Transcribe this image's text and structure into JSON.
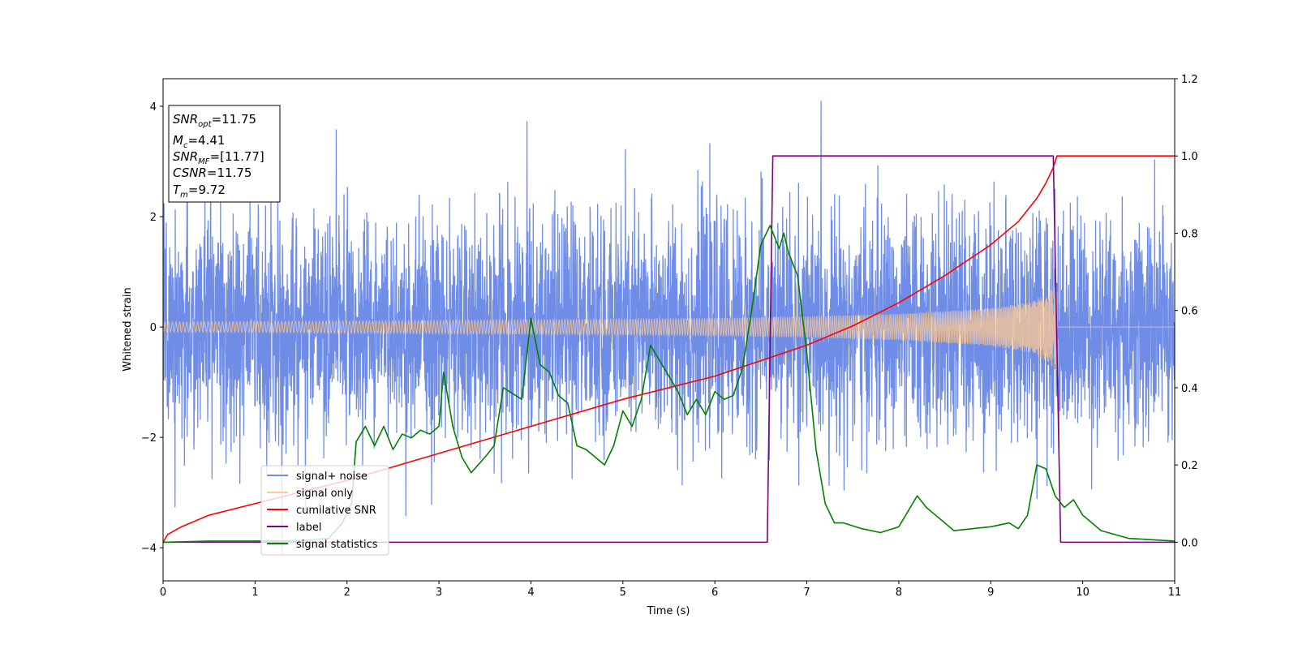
{
  "chart_data": {
    "type": "line",
    "xlabel": "Time (s)",
    "ylabel": "Whitened strain",
    "xlim": [
      0,
      11
    ],
    "ylim_left": [
      -4.6,
      4.5
    ],
    "ylim_right": [
      -0.1,
      1.2
    ],
    "xticks": [
      "0",
      "1",
      "2",
      "3",
      "4",
      "5",
      "6",
      "7",
      "8",
      "9",
      "10",
      "11"
    ],
    "yticks_left": [
      "−4",
      "−2",
      "0",
      "2",
      "4"
    ],
    "yticks_right": [
      "0.0",
      "0.2",
      "0.4",
      "0.6",
      "0.8",
      "1.0",
      "1.2"
    ],
    "grid": false,
    "legend_position": "lower-left",
    "info_box": {
      "snr_opt": "=11.75",
      "mc": "=4.41",
      "snr_mf": "=[11.77]",
      "csnr": "=11.75",
      "tm": "=9.72"
    },
    "legend": [
      {
        "label": "signal+ noise",
        "color": "#6f8de6"
      },
      {
        "label": "signal only",
        "color": "#ffc991"
      },
      {
        "label": "cumilative SNR",
        "color": "#ff0000"
      },
      {
        "label": "label",
        "color": "#800080"
      },
      {
        "label": "signal statistics",
        "color": "#008000"
      }
    ],
    "series": [
      {
        "name": "signal+ noise",
        "axis": "left",
        "description": "whitened noisy strain",
        "noise_sigma": 1.0,
        "amplitude_range": [
          -4.1,
          4.1
        ]
      },
      {
        "name": "signal only",
        "axis": "left",
        "merger_time": 9.72,
        "envelope_x": [
          0,
          2,
          4,
          6,
          7,
          8,
          9,
          9.4,
          9.6,
          9.72,
          9.73,
          11
        ],
        "envelope_y": [
          0.09,
          0.11,
          0.13,
          0.16,
          0.19,
          0.24,
          0.34,
          0.45,
          0.6,
          0.8,
          0.01,
          0.01
        ]
      },
      {
        "name": "cumilative SNR",
        "axis": "right",
        "x": [
          0,
          0.05,
          0.2,
          0.5,
          1,
          2,
          3,
          4,
          5,
          6,
          6.5,
          7,
          7.5,
          8,
          8.5,
          9,
          9.3,
          9.5,
          9.6,
          9.68,
          9.72,
          11
        ],
        "y": [
          0,
          0.02,
          0.04,
          0.07,
          0.1,
          0.16,
          0.23,
          0.3,
          0.37,
          0.43,
          0.47,
          0.51,
          0.56,
          0.62,
          0.69,
          0.77,
          0.83,
          0.89,
          0.93,
          0.97,
          1.0,
          1.0
        ]
      },
      {
        "name": "label",
        "axis": "right",
        "x": [
          0,
          6.57,
          6.63,
          9.68,
          9.76,
          11
        ],
        "y": [
          0,
          0,
          1,
          1,
          0,
          0
        ]
      },
      {
        "name": "signal statistics",
        "axis": "right",
        "x": [
          0,
          0.5,
          1,
          1.5,
          1.8,
          1.95,
          2.05,
          2.1,
          2.2,
          2.3,
          2.4,
          2.5,
          2.6,
          2.7,
          2.8,
          2.9,
          3.0,
          3.05,
          3.15,
          3.25,
          3.35,
          3.5,
          3.6,
          3.7,
          3.9,
          4.0,
          4.1,
          4.2,
          4.3,
          4.4,
          4.5,
          4.6,
          4.8,
          4.9,
          5.0,
          5.1,
          5.2,
          5.3,
          5.4,
          5.5,
          5.6,
          5.7,
          5.8,
          5.9,
          6.0,
          6.1,
          6.2,
          6.3,
          6.4,
          6.5,
          6.6,
          6.7,
          6.75,
          6.8,
          6.9,
          7.0,
          7.1,
          7.2,
          7.3,
          7.4,
          7.6,
          7.8,
          8.0,
          8.1,
          8.2,
          8.3,
          8.4,
          8.5,
          8.6,
          8.8,
          9.0,
          9.2,
          9.3,
          9.4,
          9.5,
          9.6,
          9.7,
          9.8,
          9.9,
          10.0,
          10.2,
          10.5,
          11
        ],
        "y": [
          0,
          0.003,
          0.003,
          0.004,
          0.01,
          0.05,
          0.1,
          0.26,
          0.3,
          0.25,
          0.3,
          0.24,
          0.28,
          0.27,
          0.29,
          0.28,
          0.3,
          0.44,
          0.3,
          0.22,
          0.18,
          0.22,
          0.25,
          0.4,
          0.37,
          0.58,
          0.46,
          0.44,
          0.38,
          0.36,
          0.25,
          0.24,
          0.2,
          0.25,
          0.34,
          0.3,
          0.37,
          0.51,
          0.47,
          0.43,
          0.39,
          0.33,
          0.37,
          0.33,
          0.39,
          0.37,
          0.38,
          0.45,
          0.6,
          0.77,
          0.82,
          0.76,
          0.8,
          0.75,
          0.69,
          0.49,
          0.24,
          0.1,
          0.05,
          0.05,
          0.035,
          0.025,
          0.04,
          0.08,
          0.12,
          0.09,
          0.07,
          0.05,
          0.03,
          0.035,
          0.04,
          0.05,
          0.035,
          0.07,
          0.2,
          0.19,
          0.12,
          0.09,
          0.11,
          0.07,
          0.03,
          0.01,
          0.003
        ]
      }
    ]
  }
}
